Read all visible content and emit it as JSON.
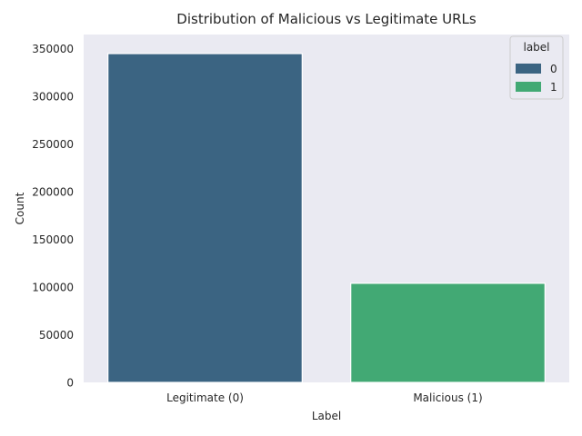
{
  "chart_data": {
    "type": "bar",
    "title": "Distribution of Malicious vs Legitimate URLs",
    "xlabel": "Label",
    "ylabel": "Count",
    "categories": [
      "Legitimate (0)",
      "Malicious (1)"
    ],
    "values": [
      345000,
      104000
    ],
    "colors": [
      "#3b6482",
      "#42a974"
    ],
    "ylim": [
      0,
      365000
    ],
    "yticks": [
      0,
      50000,
      100000,
      150000,
      200000,
      250000,
      300000,
      350000
    ],
    "grid": false,
    "background": "#eaeaf2",
    "legend": {
      "title": "label",
      "position": "top-right",
      "entries": [
        {
          "label": "0",
          "color": "#3b6482"
        },
        {
          "label": "1",
          "color": "#42a974"
        }
      ]
    }
  }
}
